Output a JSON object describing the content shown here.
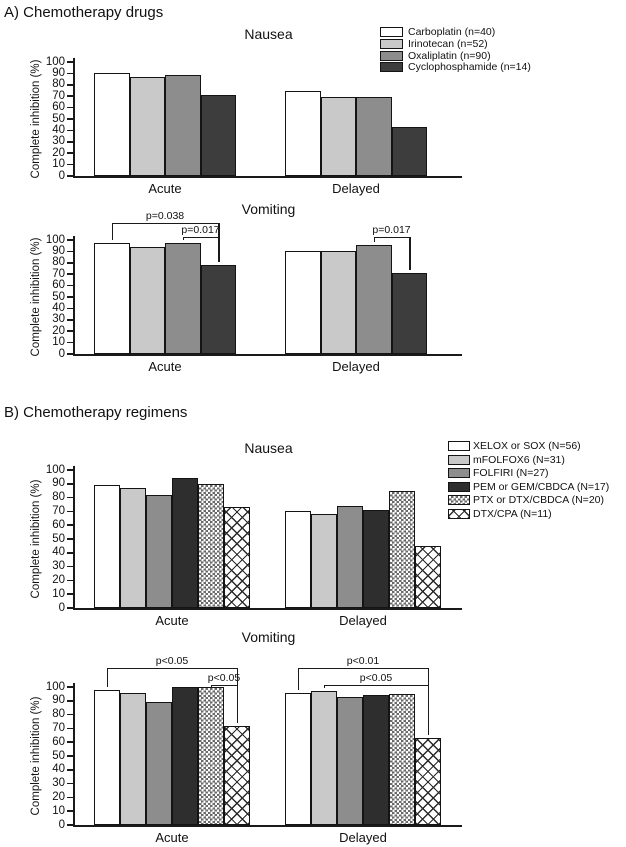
{
  "sections": {
    "a": {
      "label": "A) Chemotherapy drugs"
    },
    "b": {
      "label": "B) Chemotherapy regimens"
    }
  },
  "palette": {
    "white": "#ffffff",
    "lightgray": "#c9c9c9",
    "gray": "#8d8d8d",
    "darkgray": "#3d3d3d",
    "dark": "#2e2e2e",
    "checker": "pattern-small-checkerboard",
    "diamond": "pattern-diamond-crosshatch"
  },
  "chart_data": [
    {
      "id": "a_nausea",
      "panel": "A",
      "type": "bar",
      "title": "Nausea",
      "categories": [
        "Acute",
        "Delayed"
      ],
      "ylabel": "Complete inhibition (%)",
      "ylim": [
        0,
        100
      ],
      "ytick_step": 10,
      "legend": true,
      "legend_position": "top-right",
      "series": [
        {
          "name": "Carboplatin (n=40)",
          "style": "white",
          "values": [
            90,
            75
          ]
        },
        {
          "name": "Irinotecan (n=52)",
          "style": "lightgray",
          "values": [
            87,
            69
          ]
        },
        {
          "name": "Oxaliplatin (n=90)",
          "style": "gray",
          "values": [
            89,
            69
          ]
        },
        {
          "name": "Cyclophosphamide (n=14)",
          "style": "darkgray",
          "values": [
            71,
            43
          ]
        }
      ],
      "brackets": []
    },
    {
      "id": "a_vomiting",
      "panel": "A",
      "type": "bar",
      "title": "Vomiting",
      "categories": [
        "Acute",
        "Delayed"
      ],
      "ylabel": "Complete inhibition (%)",
      "ylim": [
        0,
        100
      ],
      "ytick_step": 10,
      "legend": false,
      "series": [
        {
          "name": "Carboplatin (n=40)",
          "style": "white",
          "values": [
            97,
            90
          ]
        },
        {
          "name": "Irinotecan (n=52)",
          "style": "lightgray",
          "values": [
            94,
            90
          ]
        },
        {
          "name": "Oxaliplatin (n=90)",
          "style": "gray",
          "values": [
            97,
            96
          ]
        },
        {
          "name": "Cyclophosphamide (n=14)",
          "style": "darkgray",
          "values": [
            78,
            71
          ]
        }
      ],
      "brackets": [
        {
          "category": "Acute",
          "from_series": 0,
          "to_series": 3,
          "label": "p=0.038",
          "level": 2
        },
        {
          "category": "Acute",
          "from_series": 2,
          "to_series": 3,
          "label": "p=0.017",
          "level": 1
        },
        {
          "category": "Delayed",
          "from_series": 2,
          "to_series": 3,
          "label": "p=0.017",
          "level": 1
        }
      ]
    },
    {
      "id": "b_nausea",
      "panel": "B",
      "type": "bar",
      "title": "Nausea",
      "categories": [
        "Acute",
        "Delayed"
      ],
      "ylabel": "Complete inhibition (%)",
      "ylim": [
        0,
        100
      ],
      "ytick_step": 10,
      "legend": true,
      "legend_position": "top-right",
      "series": [
        {
          "name": "XELOX or SOX (N=56)",
          "style": "white",
          "values": [
            89,
            70
          ]
        },
        {
          "name": "mFOLFOX6 (N=31)",
          "style": "lightgray",
          "values": [
            87,
            68
          ]
        },
        {
          "name": "FOLFIRI (N=27)",
          "style": "gray",
          "values": [
            82,
            74
          ]
        },
        {
          "name": "PEM or GEM/CBDCA (N=17)",
          "style": "dark",
          "values": [
            94,
            71
          ]
        },
        {
          "name": "PTX or DTX/CBDCA (N=20)",
          "style": "checker",
          "values": [
            90,
            85
          ]
        },
        {
          "name": "DTX/CPA (N=11)",
          "style": "diamond",
          "values": [
            73,
            45
          ]
        }
      ],
      "brackets": []
    },
    {
      "id": "b_vomiting",
      "panel": "B",
      "type": "bar",
      "title": "Vomiting",
      "categories": [
        "Acute",
        "Delayed"
      ],
      "ylabel": "Complete inhibition (%)",
      "ylim": [
        0,
        100
      ],
      "ytick_step": 10,
      "legend": false,
      "series": [
        {
          "name": "XELOX or SOX (N=56)",
          "style": "white",
          "values": [
            98,
            96
          ]
        },
        {
          "name": "mFOLFOX6 (N=31)",
          "style": "lightgray",
          "values": [
            96,
            97
          ]
        },
        {
          "name": "FOLFIRI (N=27)",
          "style": "gray",
          "values": [
            89,
            93
          ]
        },
        {
          "name": "PEM or GEM/CBDCA (N=17)",
          "style": "dark",
          "values": [
            100,
            94
          ]
        },
        {
          "name": "PTX or DTX/CBDCA (N=20)",
          "style": "checker",
          "values": [
            100,
            95
          ]
        },
        {
          "name": "DTX/CPA (N=11)",
          "style": "diamond",
          "values": [
            72,
            63
          ]
        }
      ],
      "brackets": [
        {
          "category": "Acute",
          "from_series": 0,
          "to_series": 5,
          "label": "p<0.05",
          "level": 2
        },
        {
          "category": "Acute",
          "from_series": 4,
          "to_series": 5,
          "label": "p<0.05",
          "level": 1
        },
        {
          "category": "Delayed",
          "from_series": 0,
          "to_series": 5,
          "label": "p<0.01",
          "level": 2
        },
        {
          "category": "Delayed",
          "from_series": 1,
          "to_series": 5,
          "label": "p<0.05",
          "level": 1
        }
      ]
    }
  ]
}
